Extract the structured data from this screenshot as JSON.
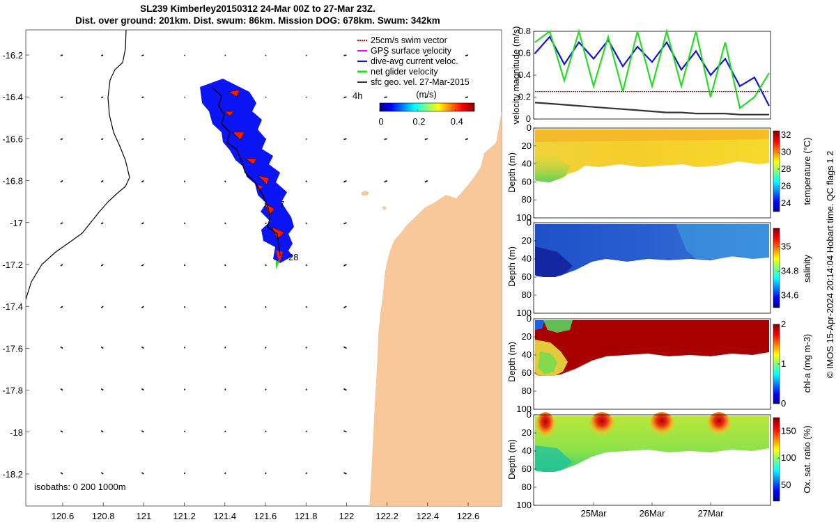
{
  "title": {
    "line1": "SL239 Kimberley20150312 24-Mar 00Z to 27-Mar 23Z.",
    "line2": "Dist. over ground: 201km. Dist. swum: 86km. Mission DOG: 678km. Swum: 342km"
  },
  "credit": "© IMOS 15-Apr-2024 20:14:04 Hobart time. QC flags 1  2",
  "colors": {
    "land": "#f8c89b",
    "glider_track_fill": "#0a14f5",
    "swim_vector": "#e00000",
    "gps_surface": "#ff00ff",
    "dive_avg": "#1414d8",
    "net_velocity": "#22dd22",
    "sfc_geo": "#333333"
  },
  "map": {
    "x_ticks": [
      "120.6",
      "120.8",
      "121",
      "121.2",
      "121.4",
      "121.6",
      "121.8",
      "122",
      "122.2",
      "122.4",
      "122.6"
    ],
    "y_ticks": [
      "-16.2",
      "-16.4",
      "-16.6",
      "-16.8",
      "-17",
      "-17.2",
      "-17.4",
      "-17.6",
      "-17.8",
      "-18",
      "-18.2"
    ],
    "isobath_text": "isobaths: 0   200  1000m",
    "start_label": "4h",
    "mid_label": "7",
    "end_label": "28",
    "legend": [
      {
        "label": "25cm/s swim vector",
        "color": "#e00000"
      },
      {
        "label": "GPS surface velocity",
        "color": "#ff00ff"
      },
      {
        "label": "dive-avg current veloc.",
        "color": "#1414d8"
      },
      {
        "label": "net glider velocity",
        "color": "#22dd22"
      },
      {
        "label": "sfc geo. vel. 27-Mar-2015",
        "color": "#333333"
      }
    ],
    "colorbar": {
      "title": "(m/s)",
      "ticks": [
        "0",
        "0.2",
        "0.4"
      ],
      "range": [
        0,
        0.5
      ]
    }
  },
  "chart_data": [
    {
      "type": "line",
      "title": "",
      "ylabel": "velocity magnitude (m/s)",
      "ylim": [
        0,
        0.8
      ],
      "y_ticks": [
        "0",
        "0.2",
        "0.4",
        "0.6",
        "0.8"
      ],
      "x": [
        0,
        0.25,
        0.5,
        0.75,
        1,
        1.25,
        1.5,
        1.75,
        2,
        2.25,
        2.5,
        2.75,
        3,
        3.25,
        3.5,
        3.75,
        4
      ],
      "series": [
        {
          "name": "dive-avg current veloc.",
          "color": "#1414d8",
          "values": [
            0.6,
            0.75,
            0.5,
            0.7,
            0.55,
            0.72,
            0.48,
            0.66,
            0.52,
            0.7,
            0.45,
            0.62,
            0.4,
            0.55,
            0.3,
            0.38,
            0.12
          ]
        },
        {
          "name": "net glider velocity",
          "color": "#22dd22",
          "values": [
            0.7,
            0.8,
            0.35,
            0.8,
            0.3,
            0.75,
            0.25,
            0.8,
            0.3,
            0.8,
            0.3,
            0.8,
            0.2,
            0.7,
            0.1,
            0.2,
            0.42
          ]
        },
        {
          "name": "25cm/s swim vector",
          "color": "#e00000",
          "values": [
            0.25,
            0.25,
            0.25,
            0.25,
            0.25,
            0.25,
            0.25,
            0.25,
            0.25,
            0.25,
            0.25,
            0.25,
            0.25,
            0.25,
            0.25,
            0.25,
            0.25
          ]
        },
        {
          "name": "sfc geo. vel.",
          "color": "#333333",
          "values": [
            0.15,
            0.14,
            0.13,
            0.12,
            0.11,
            0.1,
            0.09,
            0.08,
            0.07,
            0.06,
            0.06,
            0.05,
            0.05,
            0.05,
            0.04,
            0.04,
            0.04
          ]
        }
      ]
    },
    {
      "type": "heatmap",
      "ylabel": "Depth (m)",
      "y_ticks": [
        "0",
        "20",
        "40",
        "60",
        "80",
        "100"
      ],
      "colorbar_label": "temperature (°C)",
      "colorbar_ticks": [
        "24",
        "26",
        "28",
        "30",
        "32"
      ],
      "crange": [
        23,
        32.5
      ]
    },
    {
      "type": "heatmap",
      "ylabel": "Depth (m)",
      "y_ticks": [
        "0",
        "20",
        "40",
        "60",
        "80",
        "100"
      ],
      "colorbar_label": "salinity",
      "colorbar_ticks": [
        "34.6",
        "34.8",
        "35"
      ],
      "crange": [
        34.5,
        35.15
      ]
    },
    {
      "type": "heatmap",
      "ylabel": "Depth (m)",
      "y_ticks": [
        "0",
        "20",
        "40",
        "60",
        "80",
        "100"
      ],
      "colorbar_label": "chl-a (mg m-3)",
      "colorbar_ticks": [
        "0",
        "1",
        "2"
      ],
      "crange": [
        0,
        2
      ]
    },
    {
      "type": "heatmap",
      "ylabel": "Depth (m)",
      "y_ticks": [
        "0",
        "20",
        "40",
        "60",
        "80",
        "100"
      ],
      "colorbar_label": "Ox. sat. ratio (%)",
      "colorbar_ticks": [
        "50",
        "100",
        "150"
      ],
      "crange": [
        20,
        175
      ],
      "x_ticks": [
        "25Mar",
        "26Mar",
        "27Mar"
      ]
    }
  ]
}
